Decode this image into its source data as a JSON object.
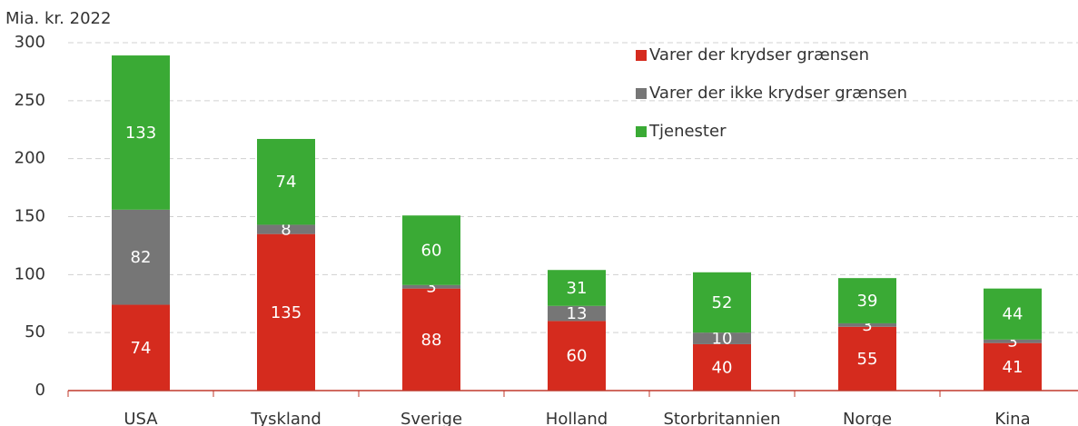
{
  "chart_data": {
    "type": "stacked_bar",
    "y_label": "Mia. kr. 2022",
    "categories": [
      "USA",
      "Tyskland",
      "Sverige",
      "Holland",
      "Storbritannien",
      "Norge",
      "Kina"
    ],
    "series": [
      {
        "name": "Varer der krydser grænsen",
        "color": "#d52b1e",
        "values": [
          74,
          135,
          88,
          60,
          40,
          55,
          41
        ]
      },
      {
        "name": "Varer der ikke krydser grænsen",
        "color": "#767676",
        "values": [
          82,
          8,
          3,
          13,
          10,
          3,
          3
        ]
      },
      {
        "name": "Tjenester",
        "color": "#3aaa35",
        "values": [
          133,
          74,
          60,
          31,
          52,
          39,
          44
        ]
      }
    ],
    "ylim": [
      0,
      300
    ],
    "yticks": [
      0,
      50,
      100,
      150,
      200,
      250,
      300
    ],
    "grid": true
  }
}
